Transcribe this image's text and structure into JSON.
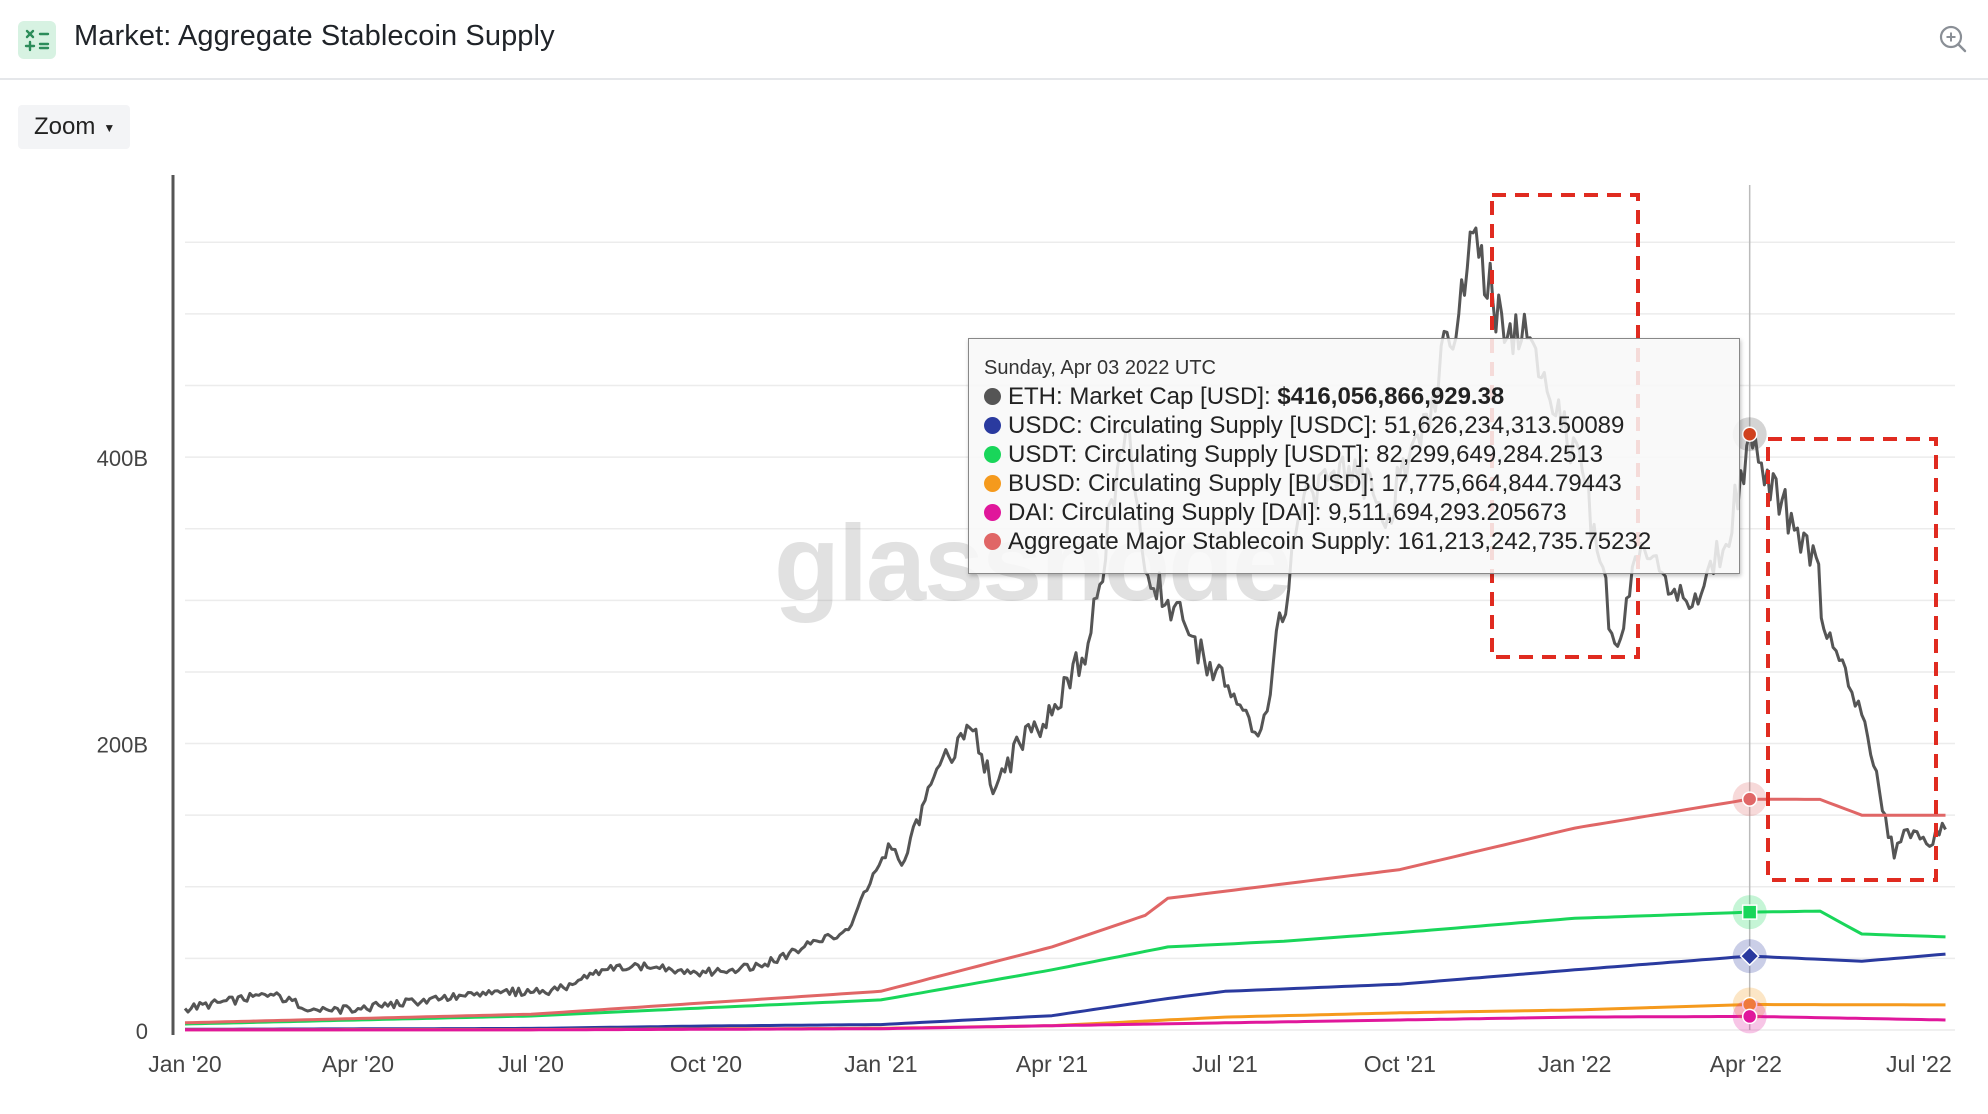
{
  "header": {
    "title": "Market: Aggregate Stablecoin Supply",
    "zoom_label": "Zoom"
  },
  "watermark": "glassnode",
  "tooltip": {
    "date": "Sunday, Apr 03 2022 UTC",
    "rows": [
      {
        "label": "ETH: Market Cap [USD]: ",
        "value": "$416,056,866,929.38",
        "color": "#555555",
        "bold": true
      },
      {
        "label": "USDC: Circulating Supply [USDC]: ",
        "value": "51,626,234,313.50089",
        "color": "#2a3a9f",
        "bold": false
      },
      {
        "label": "USDT: Circulating Supply [USDT]: ",
        "value": "82,299,649,284.2513",
        "color": "#19d65a",
        "bold": false
      },
      {
        "label": "BUSD: Circulating Supply [BUSD]: ",
        "value": "17,775,664,844.79443",
        "color": "#f59a1d",
        "bold": false
      },
      {
        "label": "DAI: Circulating Supply [DAI]: ",
        "value": "9,511,694,293.205673",
        "color": "#e0179b",
        "bold": false
      },
      {
        "label": "Aggregate Major Stablecoin Supply: ",
        "value": "161,213,242,735.75232",
        "color": "#e06666",
        "bold": false
      }
    ]
  },
  "chart_data": {
    "type": "line",
    "title": "Market: Aggregate Stablecoin Supply",
    "x_ticks": [
      "Jan '20",
      "Apr '20",
      "Jul '20",
      "Oct '20",
      "Jan '21",
      "Apr '21",
      "Jul '21",
      "Oct '21",
      "Jan '22",
      "Apr '22",
      "Jul '22"
    ],
    "y_ticks": [
      "0",
      "200B",
      "400B"
    ],
    "ylim": [
      0,
      590
    ],
    "y_unit": "B",
    "grid": true,
    "crosshair_date": "2022-04-03",
    "series": [
      {
        "name": "ETH: Market Cap [USD]",
        "color": "#555555",
        "x": [
          "2020-01-01",
          "2020-02-15",
          "2020-03-12",
          "2020-04-01",
          "2020-05-15",
          "2020-06-15",
          "2020-07-15",
          "2020-08-15",
          "2020-09-05",
          "2020-10-01",
          "2020-11-01",
          "2020-11-25",
          "2020-12-15",
          "2021-01-05",
          "2021-01-12",
          "2021-02-01",
          "2021-02-20",
          "2021-03-01",
          "2021-03-15",
          "2021-04-01",
          "2021-04-20",
          "2021-05-10",
          "2021-05-20",
          "2021-06-01",
          "2021-06-20",
          "2021-07-01",
          "2021-07-20",
          "2021-08-10",
          "2021-09-01",
          "2021-09-25",
          "2021-10-15",
          "2021-11-01",
          "2021-11-10",
          "2021-11-25",
          "2021-12-10",
          "2021-12-25",
          "2022-01-05",
          "2022-01-22",
          "2022-02-05",
          "2022-02-24",
          "2022-03-10",
          "2022-03-20",
          "2022-04-03",
          "2022-04-20",
          "2022-05-08",
          "2022-05-12",
          "2022-05-25",
          "2022-06-01",
          "2022-06-18",
          "2022-06-25",
          "2022-07-05",
          "2022-07-15"
        ],
        "values": [
          15,
          25,
          13,
          15,
          22,
          26,
          28,
          45,
          44,
          40,
          46,
          60,
          70,
          130,
          115,
          185,
          210,
          165,
          200,
          220,
          270,
          420,
          320,
          300,
          260,
          240,
          210,
          360,
          400,
          360,
          430,
          500,
          560,
          480,
          480,
          420,
          390,
          270,
          340,
          300,
          310,
          335,
          416,
          370,
          330,
          280,
          240,
          220,
          120,
          140,
          130,
          140
        ]
      },
      {
        "name": "USDC: Circulating Supply [USDC]",
        "color": "#2a3a9f",
        "x": [
          "2020-01-01",
          "2020-07-01",
          "2020-10-01",
          "2021-01-01",
          "2021-04-01",
          "2021-06-01",
          "2021-07-01",
          "2021-10-01",
          "2022-01-01",
          "2022-04-03",
          "2022-06-01",
          "2022-07-15"
        ],
        "values": [
          0.5,
          1.1,
          2.8,
          3.8,
          10,
          22,
          27,
          32,
          42,
          51.6,
          48,
          53
        ]
      },
      {
        "name": "USDT: Circulating Supply [USDT]",
        "color": "#19d65a",
        "x": [
          "2020-01-01",
          "2020-07-01",
          "2020-10-01",
          "2021-01-01",
          "2021-04-01",
          "2021-06-01",
          "2021-08-01",
          "2021-10-01",
          "2022-01-01",
          "2022-04-03",
          "2022-05-10",
          "2022-06-01",
          "2022-07-15"
        ],
        "values": [
          4.2,
          9.8,
          15.5,
          21,
          42,
          58,
          62,
          68,
          78,
          82.3,
          83,
          67,
          65
        ]
      },
      {
        "name": "BUSD: Circulating Supply [BUSD]",
        "color": "#f59a1d",
        "x": [
          "2020-01-01",
          "2020-07-01",
          "2021-01-01",
          "2021-04-01",
          "2021-07-01",
          "2021-10-01",
          "2022-01-01",
          "2022-04-03",
          "2022-07-15"
        ],
        "values": [
          0.2,
          0.3,
          1.2,
          3,
          9,
          12,
          14,
          17.8,
          17.5
        ]
      },
      {
        "name": "DAI: Circulating Supply [DAI]",
        "color": "#e0179b",
        "x": [
          "2020-01-01",
          "2020-07-01",
          "2021-01-01",
          "2021-04-01",
          "2021-07-01",
          "2021-10-01",
          "2022-01-01",
          "2022-04-03",
          "2022-07-15"
        ],
        "values": [
          0.1,
          0.1,
          0.9,
          3,
          5,
          7,
          9,
          9.5,
          7
        ]
      },
      {
        "name": "Aggregate Major Stablecoin Supply",
        "color": "#e06666",
        "x": [
          "2020-01-01",
          "2020-07-01",
          "2020-10-01",
          "2021-01-01",
          "2021-04-01",
          "2021-05-20",
          "2021-06-01",
          "2021-08-01",
          "2021-10-01",
          "2022-01-01",
          "2022-04-03",
          "2022-05-10",
          "2022-06-01",
          "2022-07-15"
        ],
        "values": [
          5,
          11,
          19,
          27,
          58,
          80,
          92,
          102,
          112,
          141,
          161.2,
          161,
          150,
          150
        ]
      }
    ]
  }
}
